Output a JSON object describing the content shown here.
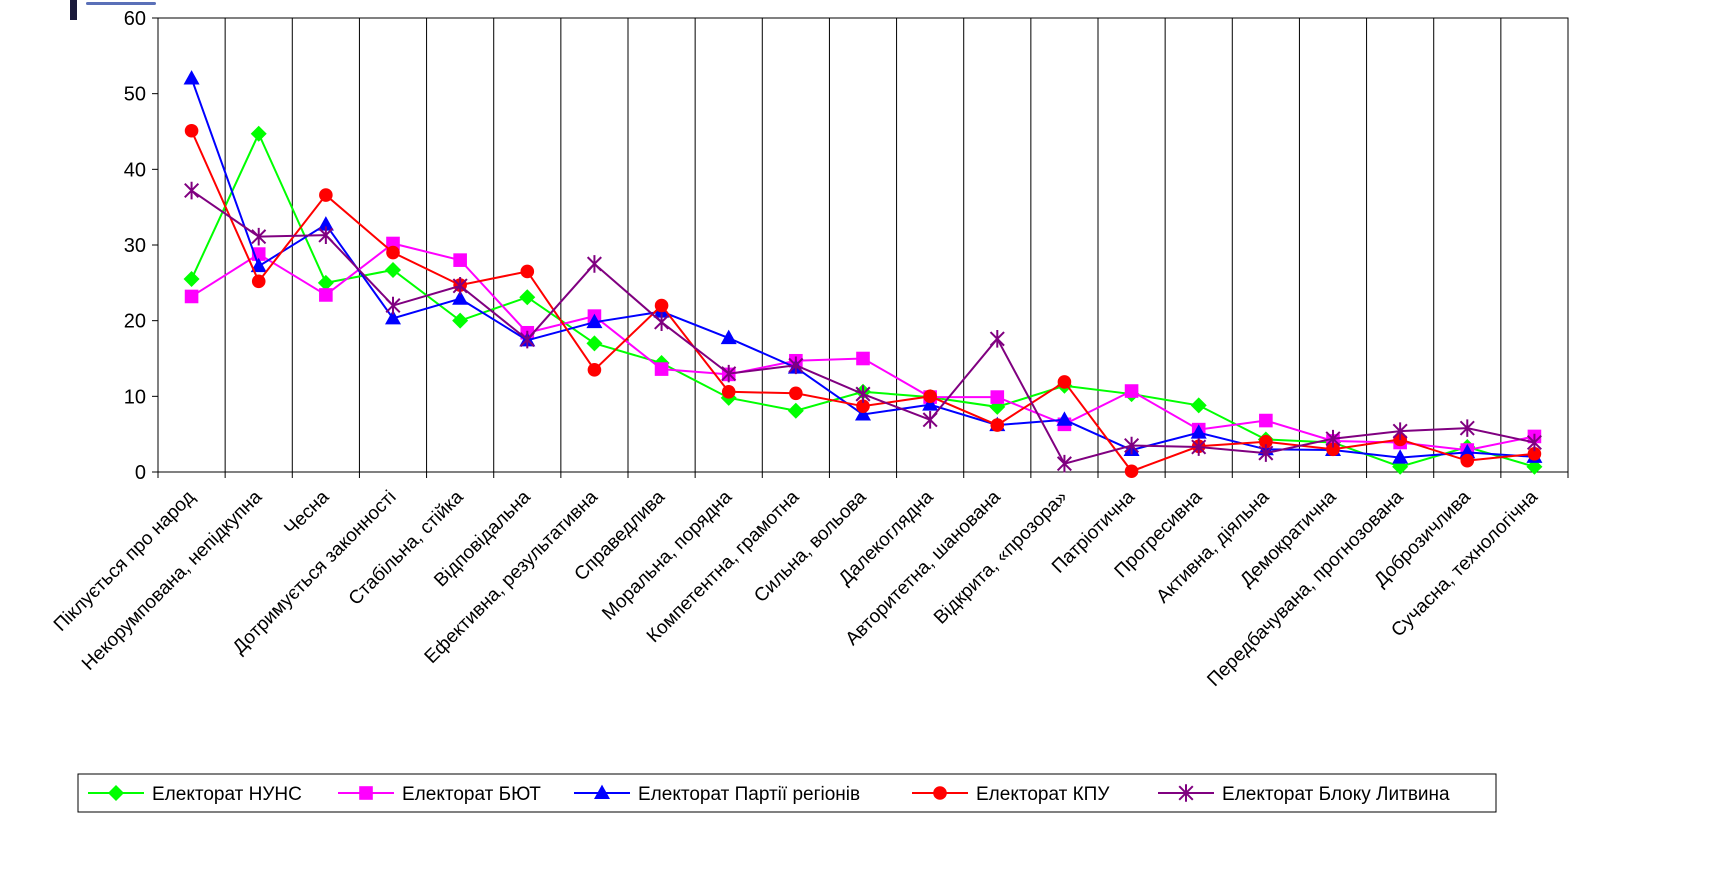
{
  "chart_data": {
    "type": "line",
    "title": "",
    "xlabel": "",
    "ylabel": "",
    "ylim": [
      0,
      60
    ],
    "yticks": [
      "0",
      "10",
      "20",
      "30",
      "40",
      "50",
      "60"
    ],
    "grid": "vertical",
    "legend_position": "bottom",
    "categories": [
      "Піклується про народ",
      "Некорумпована, непідкупна",
      "Чесна",
      "Дотримується законності",
      "Стабільна, стійка",
      "Відповідальна",
      "Ефективна, результативна",
      "Справедлива",
      "Моральна, порядна",
      "Компетентна, грамотна",
      "Сильна, вольова",
      "Далекоглядна",
      "Авторитетна, шанована",
      "Відкрита, «прозора»",
      "Патріотична",
      "Прогресивна",
      "Активна, діяльна",
      "Демократична",
      "Передбачувана, прогнозована",
      "Доброзичлива",
      "Сучасна, технологічна"
    ],
    "series": [
      {
        "name": "Електорат НУНС",
        "color": "#00ff00",
        "marker": "diamond",
        "values": [
          25.5,
          44.7,
          25.0,
          26.7,
          20.0,
          23.1,
          17.0,
          14.4,
          9.8,
          8.1,
          10.6,
          9.9,
          8.6,
          11.4,
          10.3,
          8.8,
          4.3,
          3.9,
          0.7,
          3.3,
          0.7
        ]
      },
      {
        "name": "Електорат БЮТ",
        "color": "#ff00ff",
        "marker": "square",
        "values": [
          23.2,
          28.8,
          23.4,
          30.2,
          28.0,
          18.4,
          20.6,
          13.6,
          12.9,
          14.7,
          15.0,
          9.9,
          9.9,
          6.3,
          10.7,
          5.6,
          6.8,
          4.1,
          3.9,
          2.9,
          4.7
        ]
      },
      {
        "name": "Електорат Партії регіонів",
        "color": "#0000ff",
        "marker": "triangle",
        "values": [
          52.0,
          27.2,
          32.7,
          20.3,
          22.9,
          17.4,
          19.8,
          21.2,
          17.7,
          13.8,
          7.6,
          8.9,
          6.2,
          6.9,
          2.9,
          5.2,
          3.0,
          2.9,
          1.9,
          2.6,
          2.0
        ]
      },
      {
        "name": "Електорат КПУ",
        "color": "#ff0000",
        "marker": "circle",
        "values": [
          45.1,
          25.2,
          36.6,
          29.0,
          24.7,
          26.5,
          13.5,
          22.0,
          10.6,
          10.4,
          8.7,
          10.0,
          6.2,
          11.9,
          0.1,
          3.4,
          4.0,
          3.0,
          4.3,
          1.5,
          2.4
        ]
      },
      {
        "name": "Електорат Блоку Литвина",
        "color": "#800080",
        "marker": "star",
        "values": [
          37.2,
          31.1,
          31.3,
          22.0,
          24.6,
          17.5,
          27.5,
          19.8,
          13.0,
          14.1,
          10.3,
          6.9,
          17.6,
          1.1,
          3.5,
          3.3,
          2.5,
          4.4,
          5.4,
          5.8,
          3.9
        ]
      }
    ]
  }
}
